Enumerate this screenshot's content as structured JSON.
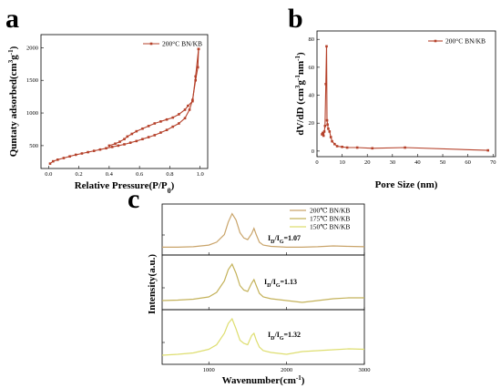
{
  "panels": {
    "a": {
      "letter": "a"
    },
    "b": {
      "letter": "b"
    },
    "c": {
      "letter": "c"
    }
  },
  "chart_data": [
    {
      "id": "a",
      "type": "line",
      "title": "",
      "xlabel": "Relative Pressure(P/P",
      "xlabel_sub": "0",
      "xlabel_end": ")",
      "ylabel": "Quntaty adsorbed(cm",
      "ylabel_sup1": "3",
      "ylabel_mid": "g",
      "ylabel_sup2": "-1",
      "ylabel_end": ")",
      "xlim": [
        -0.05,
        1.05
      ],
      "ylim": [
        150,
        2200
      ],
      "xticks": [
        0.0,
        0.2,
        0.4,
        0.6,
        0.8,
        1.0
      ],
      "xtick_labels": [
        "0.0",
        "0.2",
        "0.4",
        "0.6",
        "0.8",
        "1.0"
      ],
      "yticks": [
        500,
        1000,
        1500,
        2000
      ],
      "ytick_labels": [
        "500",
        "1000",
        "1500",
        "2000"
      ],
      "legend_position": "top-right",
      "color": "#b5412a",
      "series": [
        {
          "name": "200°C BN/KB",
          "x": [
            0.01,
            0.03,
            0.06,
            0.1,
            0.14,
            0.18,
            0.22,
            0.26,
            0.3,
            0.34,
            0.38,
            0.42,
            0.46,
            0.5,
            0.54,
            0.58,
            0.62,
            0.66,
            0.7,
            0.74,
            0.78,
            0.82,
            0.86,
            0.9,
            0.93,
            0.95,
            0.97,
            0.985,
            0.99
          ],
          "y": [
            225,
            260,
            285,
            310,
            335,
            360,
            380,
            400,
            420,
            440,
            460,
            480,
            500,
            520,
            545,
            570,
            600,
            630,
            660,
            700,
            740,
            790,
            840,
            920,
            1050,
            1200,
            1500,
            1700,
            1980
          ]
        },
        {
          "name": "",
          "x": [
            0.99,
            0.97,
            0.95,
            0.92,
            0.9,
            0.86,
            0.82,
            0.78,
            0.74,
            0.7,
            0.66,
            0.62,
            0.58,
            0.55,
            0.52,
            0.5,
            0.47,
            0.44,
            0.4
          ],
          "y": [
            1980,
            1560,
            1180,
            1110,
            1050,
            980,
            930,
            900,
            870,
            840,
            800,
            760,
            720,
            680,
            640,
            600,
            560,
            530,
            500
          ]
        }
      ]
    },
    {
      "id": "b",
      "type": "line",
      "title": "",
      "xlabel": "Pore Size (nm)",
      "ylabel": "dV/dD (cm",
      "ylabel_sup1": "3",
      "ylabel_mid": "g",
      "ylabel_sup2": "-1",
      "ylabel_mid2": "nm",
      "ylabel_sup3": "-1",
      "ylabel_end": ")",
      "xlim": [
        0,
        71
      ],
      "ylim": [
        -4,
        86
      ],
      "xticks": [
        0,
        10,
        20,
        30,
        40,
        50,
        60,
        70
      ],
      "xtick_labels": [
        "0",
        "10",
        "20",
        "30",
        "40",
        "50",
        "60",
        "70"
      ],
      "yticks": [
        0,
        20,
        40,
        60,
        80
      ],
      "ytick_labels": [
        "0",
        "20",
        "40",
        "60",
        "80"
      ],
      "legend_position": "top-right",
      "color": "#b5412a",
      "series": [
        {
          "name": "200°C BN/KB",
          "x": [
            2.0,
            2.3,
            2.6,
            2.9,
            3.2,
            3.5,
            3.8,
            4.0,
            4.2,
            4.5,
            5.0,
            5.5,
            6.0,
            7.0,
            8.0,
            10.0,
            12.0,
            16.0,
            22.0,
            35.0,
            68.0
          ],
          "y": [
            12,
            13,
            11,
            14,
            18,
            48,
            75,
            22,
            19,
            16,
            14,
            10,
            7,
            5,
            3.5,
            3,
            2.5,
            2.5,
            2,
            2.5,
            0.5
          ]
        }
      ]
    },
    {
      "id": "c",
      "type": "line",
      "title": "",
      "xlabel": "Wavenumber(cm",
      "xlabel_sup": "-1",
      "xlabel_end": ")",
      "ylabel": "Intensity(a.u.)",
      "xlim": [
        400,
        3000
      ],
      "xticks": [
        1000,
        2000,
        3000
      ],
      "xtick_labels": [
        "1000",
        "2000",
        "3000"
      ],
      "legend_position": "top-right",
      "series": [
        {
          "name": "200℃  BN/KB",
          "color": "#c9a46a",
          "annotation": {
            "main": "I",
            "sub1": "D",
            "mid": "/I",
            "sub2": "G",
            "value": "=1.07"
          },
          "x": [
            400,
            600,
            800,
            1000,
            1100,
            1200,
            1250,
            1300,
            1350,
            1400,
            1450,
            1500,
            1550,
            1580,
            1610,
            1650,
            1700,
            1800,
            2000,
            2200,
            2400,
            2600,
            2800,
            3000
          ],
          "y": [
            0.1,
            0.1,
            0.11,
            0.15,
            0.22,
            0.4,
            0.7,
            0.9,
            0.75,
            0.45,
            0.32,
            0.28,
            0.42,
            0.55,
            0.4,
            0.22,
            0.15,
            0.12,
            0.1,
            0.1,
            0.11,
            0.13,
            0.12,
            0.11
          ]
        },
        {
          "name": "175℃  BN/KB",
          "color": "#c4b25a",
          "annotation": {
            "main": "I",
            "sub1": "D",
            "mid": "/I",
            "sub2": "G",
            "value": "=1.13"
          },
          "x": [
            400,
            600,
            800,
            1000,
            1100,
            1200,
            1250,
            1300,
            1350,
            1400,
            1450,
            1500,
            1550,
            1580,
            1610,
            1650,
            1700,
            1800,
            2000,
            2200,
            2400,
            2600,
            2800,
            3000
          ],
          "y": [
            0.12,
            0.13,
            0.15,
            0.2,
            0.3,
            0.55,
            0.8,
            0.92,
            0.72,
            0.45,
            0.35,
            0.32,
            0.5,
            0.58,
            0.45,
            0.28,
            0.2,
            0.16,
            0.12,
            0.08,
            0.12,
            0.16,
            0.18,
            0.18
          ]
        },
        {
          "name": "150℃  BN/KB",
          "color": "#dede70",
          "annotation": {
            "main": "I",
            "sub1": "D",
            "mid": "/I",
            "sub2": "G",
            "value": "=1.32"
          },
          "x": [
            400,
            600,
            800,
            1000,
            1100,
            1200,
            1250,
            1300,
            1350,
            1400,
            1450,
            1500,
            1550,
            1580,
            1610,
            1650,
            1700,
            1800,
            2000,
            2200,
            2400,
            2600,
            2800,
            3000
          ],
          "y": [
            0.12,
            0.14,
            0.17,
            0.25,
            0.35,
            0.6,
            0.82,
            0.92,
            0.7,
            0.45,
            0.38,
            0.35,
            0.55,
            0.6,
            0.45,
            0.3,
            0.22,
            0.18,
            0.14,
            0.2,
            0.22,
            0.24,
            0.26,
            0.25
          ]
        }
      ]
    }
  ]
}
